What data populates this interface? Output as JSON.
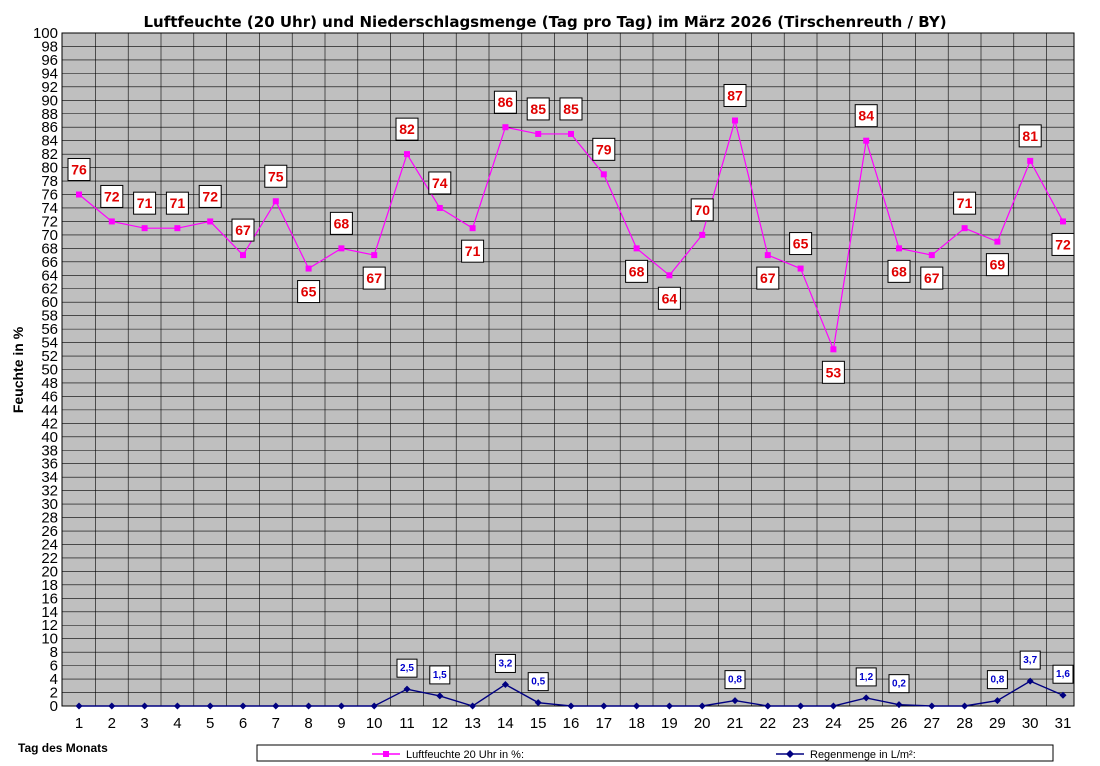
{
  "chart_data": {
    "type": "line",
    "title": "Luftfeuchte (20 Uhr) und Niederschlagsmenge (Tag pro Tag) im März 2026 (Tirschenreuth / BY)",
    "xlabel": "Tag des Monats",
    "ylabel": "Feuchte in %",
    "ylim": [
      0,
      100
    ],
    "ytick_step": 2,
    "grid": true,
    "legend_position": "bottom",
    "x": [
      1,
      2,
      3,
      4,
      5,
      6,
      7,
      8,
      9,
      10,
      11,
      12,
      13,
      14,
      15,
      16,
      17,
      18,
      19,
      20,
      21,
      22,
      23,
      24,
      25,
      26,
      27,
      28,
      29,
      30,
      31
    ],
    "x_tick_labels": [
      "1",
      "2",
      "3",
      "4",
      "5",
      "6",
      "7",
      "8",
      "9",
      "10",
      "11",
      "12",
      "13",
      "14",
      "15",
      "16",
      "17",
      "18",
      "19",
      "20",
      "21",
      "22",
      "23",
      "24",
      "25",
      "26",
      "27",
      "28",
      "29",
      "30",
      "31"
    ],
    "series": [
      {
        "name": "Luftfeuchte 20 Uhr in %:",
        "color": "#ff00ff",
        "marker": "square",
        "values": [
          76,
          72,
          71,
          71,
          72,
          67,
          75,
          65,
          68,
          67,
          82,
          74,
          71,
          86,
          85,
          85,
          79,
          68,
          64,
          70,
          87,
          67,
          65,
          53,
          84,
          68,
          67,
          71,
          69,
          81,
          72
        ],
        "labels": [
          "76",
          "72",
          "71",
          "71",
          "72",
          "67",
          "75",
          "65",
          "68",
          "67",
          "82",
          "74",
          "71",
          "86",
          "85",
          "85",
          "79",
          "68",
          "64",
          "70",
          "87",
          "67",
          "65",
          "53",
          "84",
          "68",
          "67",
          "71",
          "69",
          "81",
          "72"
        ],
        "label_positions": [
          "above",
          "above",
          "above",
          "above",
          "above",
          "above",
          "above",
          "below",
          "above",
          "below",
          "above",
          "above",
          "below",
          "above",
          "above",
          "above",
          "above",
          "below",
          "below",
          "above",
          "above",
          "below",
          "above",
          "below",
          "above",
          "below",
          "below",
          "above",
          "below",
          "above",
          "below"
        ]
      },
      {
        "name": "Regenmenge in L/m²:",
        "color": "#000080",
        "marker": "diamond",
        "values": [
          0,
          0,
          0,
          0,
          0,
          0,
          0,
          0,
          0,
          0,
          2.5,
          1.5,
          0,
          3.2,
          0.5,
          0,
          0,
          0,
          0,
          0,
          0.8,
          0,
          0,
          0,
          1.2,
          0.2,
          0,
          0,
          0.8,
          3.7,
          1.6
        ],
        "labels": [
          "",
          "",
          "",
          "",
          "",
          "",
          "",
          "",
          "",
          "",
          "2,5",
          "1,5",
          "",
          "3,2",
          "0,5",
          "",
          "",
          "",
          "",
          "",
          "0,8",
          "",
          "",
          "",
          "1,2",
          "0,2",
          "",
          "",
          "0,8",
          "3,7",
          "1,6"
        ]
      }
    ]
  }
}
